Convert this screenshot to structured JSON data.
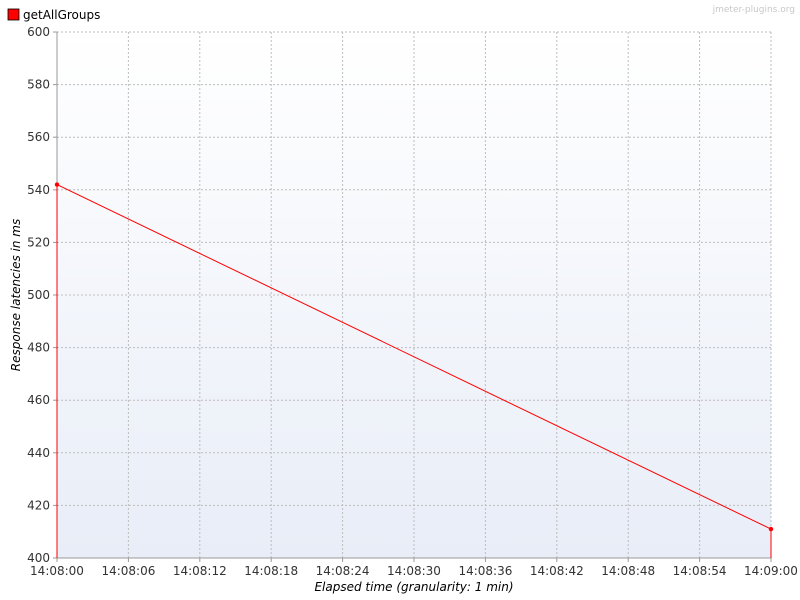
{
  "watermark": "jmeter-plugins.org",
  "legend": {
    "label": "getAllGroups",
    "color": "#ff0000"
  },
  "chart_data": {
    "type": "line",
    "title": "",
    "xlabel": "Elapsed time (granularity: 1 min)",
    "ylabel": "Response latencies in ms",
    "ylim": [
      400,
      600
    ],
    "yticks": [
      400,
      420,
      440,
      460,
      480,
      500,
      520,
      540,
      560,
      580,
      600
    ],
    "xticks": [
      "14:08:00",
      "14:08:06",
      "14:08:12",
      "14:08:18",
      "14:08:24",
      "14:08:30",
      "14:08:36",
      "14:08:42",
      "14:08:48",
      "14:08:54",
      "14:09:00"
    ],
    "grid": true,
    "legend_position": "top-left",
    "series": [
      {
        "name": "getAllGroups",
        "color": "#ff0000",
        "points": [
          {
            "x": "14:08:00",
            "y": 542
          },
          {
            "x": "14:09:00",
            "y": 411
          }
        ]
      }
    ]
  }
}
